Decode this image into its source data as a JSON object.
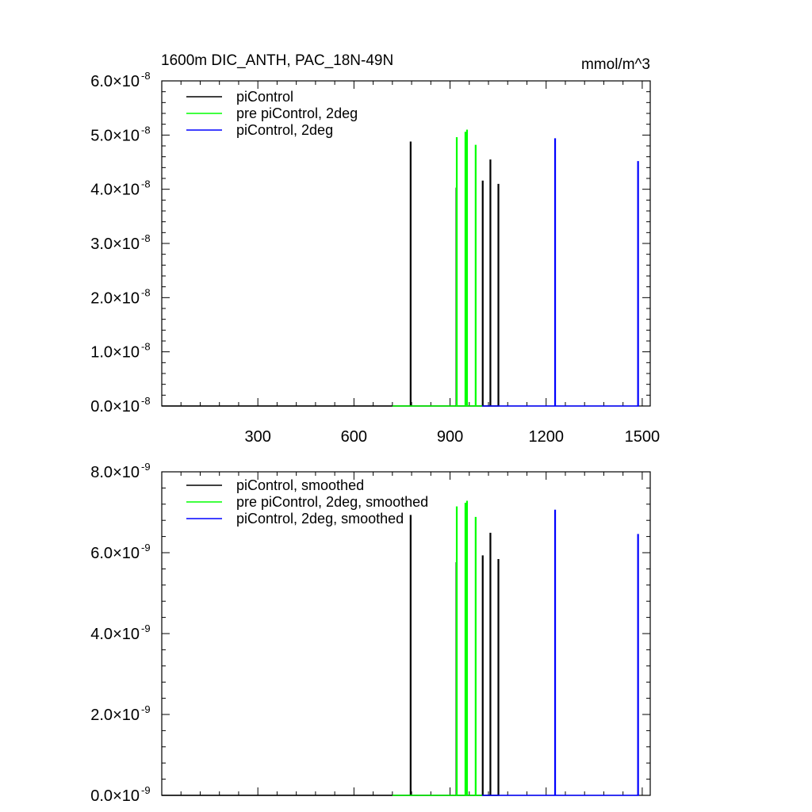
{
  "chart_data": [
    {
      "type": "line",
      "title": "1600m DIC_ANTH, PAC_18N-49N",
      "units": "mmol/m^3",
      "xlim": [
        0,
        1525
      ],
      "ylim": [
        0,
        6e-08
      ],
      "x_ticks": [
        300,
        600,
        900,
        1200,
        1500
      ],
      "x_tick_labels": [
        "300",
        "600",
        "900",
        "1200",
        "1500"
      ],
      "y_ticks": [
        0,
        1e-08,
        2e-08,
        3e-08,
        4e-08,
        5e-08,
        6e-08
      ],
      "y_tick_labels": [
        {
          "mantissa": "0.0",
          "times": "×",
          "base": "10",
          "exp": "-8"
        },
        {
          "mantissa": "1.0",
          "times": "×",
          "base": "10",
          "exp": "-8"
        },
        {
          "mantissa": "2.0",
          "times": "×",
          "base": "10",
          "exp": "-8"
        },
        {
          "mantissa": "3.0",
          "times": "×",
          "base": "10",
          "exp": "-8"
        },
        {
          "mantissa": "4.0",
          "times": "×",
          "base": "10",
          "exp": "-8"
        },
        {
          "mantissa": "5.0",
          "times": "×",
          "base": "10",
          "exp": "-8"
        },
        {
          "mantissa": "6.0",
          "times": "×",
          "base": "10",
          "exp": "-8"
        }
      ],
      "grid": false,
      "legend_position": "top-left",
      "series": [
        {
          "name": "piControl",
          "color": "#000000",
          "x_range": [
            0,
            1050
          ],
          "spikes": [
            [
              777,
              4.87e-08
            ],
            [
              920,
              4.02e-08
            ],
            [
              1002,
              4.15e-08
            ],
            [
              1026,
              4.54e-08
            ],
            [
              1051,
              4.09e-08
            ]
          ]
        },
        {
          "name": "pre piControl, 2deg",
          "color": "#00ff00",
          "x_range": [
            720,
            1000
          ],
          "spikes": [
            [
              921,
              4.95e-08
            ],
            [
              948,
              5.05e-08
            ],
            [
              953,
              5.09e-08
            ],
            [
              980,
              4.81e-08
            ]
          ]
        },
        {
          "name": "piControl, 2deg",
          "color": "#0000ff",
          "x_range": [
            1000,
            1490
          ],
          "spikes": [
            [
              1228,
              4.93e-08
            ],
            [
              1487,
              4.51e-08
            ]
          ]
        }
      ]
    },
    {
      "type": "line",
      "xlim": [
        0,
        1525
      ],
      "ylim": [
        0,
        8e-09
      ],
      "x_ticks": [
        300,
        600,
        900,
        1200,
        1500
      ],
      "y_ticks": [
        0,
        2e-09,
        4e-09,
        6e-09,
        8e-09
      ],
      "y_tick_labels": [
        {
          "mantissa": "0.0",
          "times": "×",
          "base": "10",
          "exp": "-9"
        },
        {
          "mantissa": "2.0",
          "times": "×",
          "base": "10",
          "exp": "-9"
        },
        {
          "mantissa": "4.0",
          "times": "×",
          "base": "10",
          "exp": "-9"
        },
        {
          "mantissa": "6.0",
          "times": "×",
          "base": "10",
          "exp": "-9"
        },
        {
          "mantissa": "8.0",
          "times": "×",
          "base": "10",
          "exp": "-9"
        }
      ],
      "grid": false,
      "legend_position": "top-left",
      "series": [
        {
          "name": "piControl, smoothed",
          "color": "#000000",
          "x_range": [
            0,
            1050
          ],
          "spikes": [
            [
              777,
              6.92e-09
            ],
            [
              920,
              5.75e-09
            ],
            [
              1002,
              5.92e-09
            ],
            [
              1026,
              6.48e-09
            ],
            [
              1051,
              5.83e-09
            ]
          ]
        },
        {
          "name": "pre piControl, 2deg, smoothed",
          "color": "#00ff00",
          "x_range": [
            720,
            1000
          ],
          "spikes": [
            [
              921,
              7.13e-09
            ],
            [
              948,
              7.22e-09
            ],
            [
              953,
              7.27e-09
            ],
            [
              980,
              6.87e-09
            ]
          ]
        },
        {
          "name": "piControl, 2deg, smoothed",
          "color": "#0000ff",
          "x_range": [
            1000,
            1490
          ],
          "spikes": [
            [
              1228,
              7.05e-09
            ],
            [
              1487,
              6.45e-09
            ]
          ]
        }
      ]
    }
  ]
}
